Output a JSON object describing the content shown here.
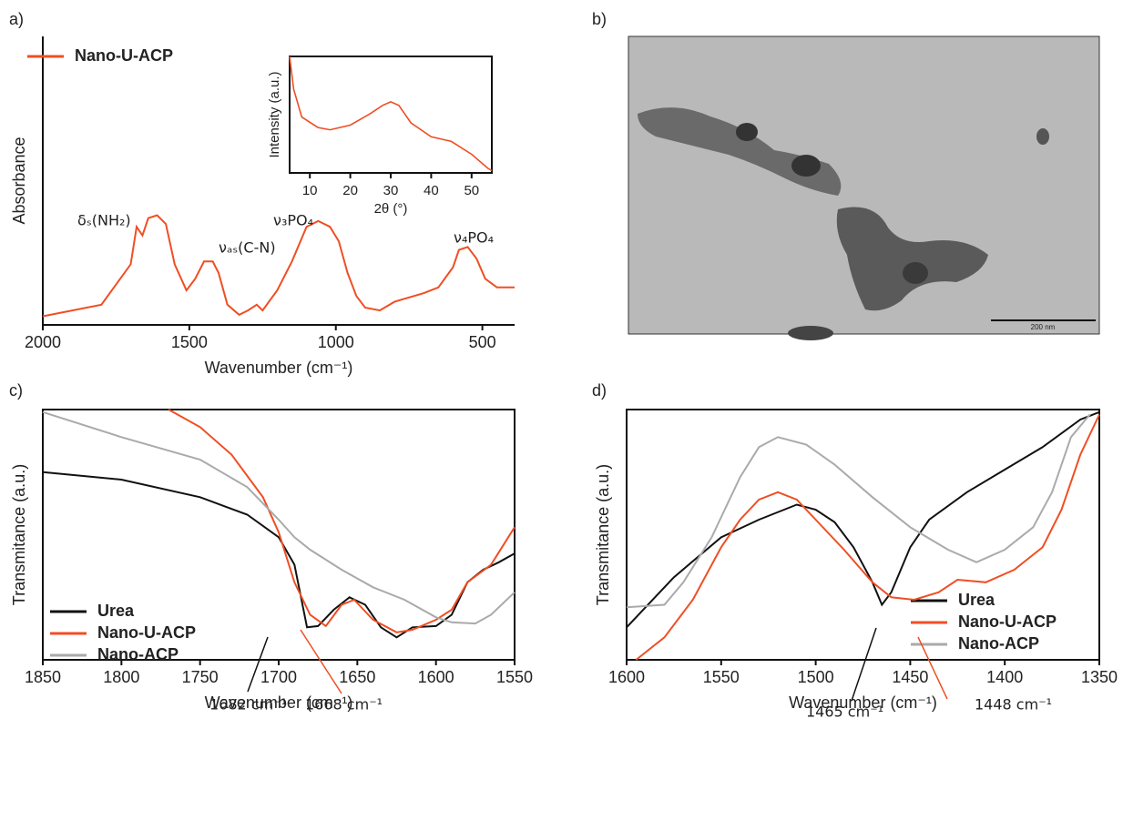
{
  "chart_data": [
    {
      "type": "line",
      "panel_label": "a)",
      "xlabel": "Wavenumber (cm⁻¹)",
      "ylabel": "Absorbance",
      "xlim": [
        2000,
        390
      ],
      "xticks": [
        2000,
        1500,
        1000,
        500
      ],
      "ylim": [
        0,
        100
      ],
      "frame": "axes",
      "legend": "upper left",
      "series": [
        {
          "name": "Nano-U-ACP",
          "color": "#f04e23",
          "x": [
            2000,
            1800,
            1700,
            1680,
            1660,
            1640,
            1610,
            1580,
            1550,
            1510,
            1480,
            1450,
            1420,
            1400,
            1370,
            1330,
            1300,
            1270,
            1250,
            1200,
            1150,
            1100,
            1060,
            1020,
            990,
            960,
            930,
            900,
            850,
            800,
            700,
            650,
            600,
            580,
            550,
            520,
            490,
            450,
            390
          ],
          "values": [
            3,
            7,
            21,
            34,
            31,
            37,
            38,
            35,
            21,
            12,
            16,
            22,
            22,
            18,
            7,
            3.5,
            5,
            7,
            5,
            12,
            22,
            34,
            36,
            34,
            29,
            18,
            10,
            6,
            5,
            8,
            11,
            13,
            20,
            26,
            27,
            23,
            16,
            13,
            13
          ]
        }
      ],
      "annotations": [
        {
          "text": "δₛ(NH₂)",
          "color": "#222222"
        },
        {
          "text": "νₐₛ(C-N)",
          "color": "#222222"
        },
        {
          "text": "ν₃PO₄",
          "color": "#222222"
        },
        {
          "text": "ν₄PO₄",
          "color": "#222222"
        }
      ]
    },
    {
      "type": "line",
      "xlabel": "2θ (°)",
      "ylabel": "Intensity (a.u.)",
      "xlim": [
        5,
        55
      ],
      "xticks": [
        10,
        20,
        30,
        40,
        50
      ],
      "ylim": [
        0,
        100
      ],
      "frame": "box",
      "color": "#f04e23",
      "x": [
        5,
        6,
        8,
        12,
        15,
        20,
        25,
        28,
        30,
        32,
        35,
        40,
        45,
        50,
        54,
        55
      ],
      "values": [
        100,
        72,
        48,
        39,
        37,
        41,
        51,
        58,
        61,
        58,
        43,
        31,
        27,
        16,
        4,
        2
      ]
    },
    {
      "type": "line",
      "panel_label": "c)",
      "xlabel": "Wavenumber (cm⁻¹)",
      "ylabel": "Transmitance (a.u.)",
      "xlim": [
        1850,
        1550
      ],
      "xticks": [
        1850,
        1800,
        1750,
        1700,
        1650,
        1600,
        1550
      ],
      "ylim": [
        0,
        100
      ],
      "frame": "box",
      "legend": "lower left",
      "series": [
        {
          "name": "Urea",
          "color": "#111111",
          "x": [
            1850,
            1800,
            1750,
            1720,
            1700,
            1690,
            1682,
            1675,
            1665,
            1655,
            1645,
            1635,
            1625,
            1615,
            1600,
            1590,
            1580,
            1570,
            1560,
            1550
          ],
          "values": [
            75,
            72,
            65,
            58,
            49,
            38,
            13,
            13.5,
            20,
            25,
            22,
            13,
            9,
            13,
            13.5,
            18,
            31,
            36,
            39,
            42.5
          ]
        },
        {
          "name": "Nano-U-ACP",
          "color": "#f04e23",
          "x": [
            1770,
            1750,
            1730,
            1710,
            1700,
            1690,
            1680,
            1670,
            1660,
            1652,
            1640,
            1625,
            1615,
            1600,
            1590,
            1580,
            1565,
            1550
          ],
          "values": [
            100,
            93,
            82,
            65,
            51,
            31,
            18,
            13.5,
            22,
            24,
            16,
            11,
            12,
            16,
            20,
            31,
            38,
            53
          ]
        },
        {
          "name": "Nano-ACP",
          "color": "#aaaaaa",
          "x": [
            1850,
            1800,
            1750,
            1720,
            1700,
            1690,
            1680,
            1660,
            1640,
            1620,
            1600,
            1590,
            1575,
            1565,
            1555,
            1550
          ],
          "values": [
            99,
            89,
            80,
            69,
            56,
            49,
            44,
            36,
            29,
            24,
            17,
            15,
            14.5,
            18,
            24,
            27
          ]
        }
      ],
      "annotations": [
        {
          "text": "1682 cm⁻¹",
          "color": "#111111"
        },
        {
          "text": "1668 cm⁻¹",
          "color": "#f04e23"
        }
      ]
    },
    {
      "type": "line",
      "panel_label": "d)",
      "xlabel": "Wavenumber (cm⁻¹)",
      "ylabel": "Transmitance (a.u.)",
      "xlim": [
        1600,
        1350
      ],
      "xticks": [
        1600,
        1550,
        1500,
        1450,
        1400,
        1350
      ],
      "ylim": [
        0,
        100
      ],
      "frame": "box",
      "legend": "lower right",
      "series": [
        {
          "name": "Urea",
          "color": "#111111",
          "x": [
            1600,
            1575,
            1550,
            1530,
            1510,
            1500,
            1490,
            1480,
            1470,
            1465,
            1460,
            1450,
            1440,
            1420,
            1400,
            1380,
            1360,
            1350
          ],
          "values": [
            13,
            33,
            49,
            56,
            62,
            60,
            55,
            45,
            31,
            22,
            27,
            45,
            56,
            67,
            76,
            85,
            96,
            99
          ]
        },
        {
          "name": "Nano-U-ACP",
          "color": "#f04e23",
          "x": [
            1595,
            1580,
            1565,
            1550,
            1540,
            1530,
            1520,
            1510,
            1500,
            1485,
            1470,
            1460,
            1448,
            1435,
            1425,
            1410,
            1395,
            1380,
            1370,
            1360,
            1350
          ],
          "values": [
            0,
            9,
            24,
            45,
            56,
            64,
            67,
            64,
            56,
            44,
            31,
            25,
            24,
            27,
            32,
            31,
            36,
            45,
            60,
            82,
            98
          ]
        },
        {
          "name": "Nano-ACP",
          "color": "#aaaaaa",
          "x": [
            1600,
            1580,
            1570,
            1555,
            1540,
            1530,
            1520,
            1505,
            1490,
            1470,
            1450,
            1430,
            1415,
            1400,
            1385,
            1375,
            1365,
            1355
          ],
          "values": [
            21,
            22,
            31,
            49,
            73,
            85,
            89,
            86,
            78,
            65,
            53,
            44,
            39,
            44,
            53,
            67,
            89,
            98
          ]
        }
      ],
      "annotations": [
        {
          "text": "1465 cm⁻¹",
          "color": "#111111"
        },
        {
          "text": "1448 cm⁻¹",
          "color": "#f04e23"
        }
      ]
    }
  ],
  "image": {
    "panel_label": "b)",
    "scale_bar_label": "200 nm"
  }
}
